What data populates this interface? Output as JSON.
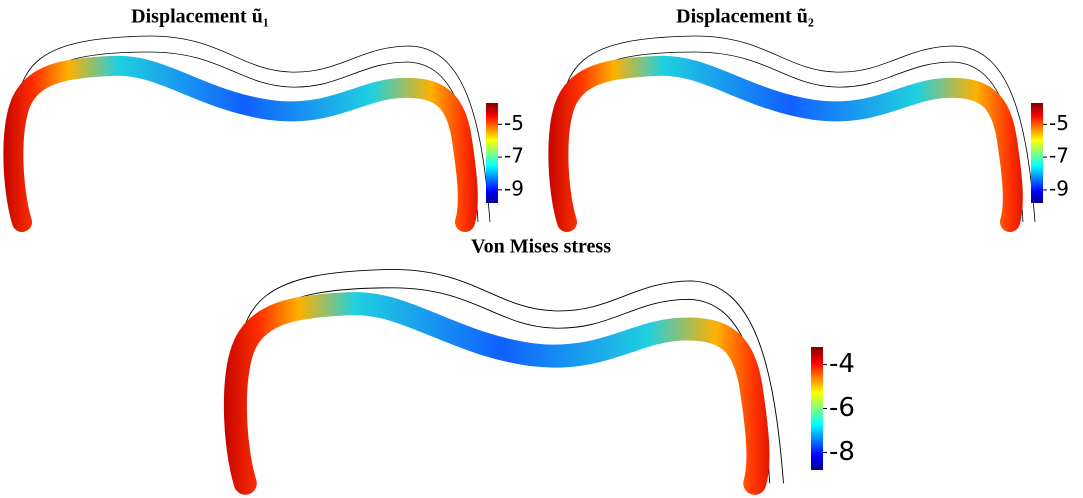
{
  "chart_data": [
    {
      "type": "heatmap",
      "title": "Displacement ũ₁",
      "zlim": [
        -9.8,
        -3.7
      ],
      "zticks": [
        -5,
        -7,
        -9
      ]
    },
    {
      "type": "heatmap",
      "title": "Displacement ũ₂",
      "zlim": [
        -9.8,
        -3.7
      ],
      "zticks": [
        -5,
        -7,
        -9
      ]
    },
    {
      "type": "heatmap",
      "title": "Von Mises stress",
      "zlim": [
        -8.8,
        -3.2
      ],
      "zticks": [
        -4,
        -6,
        -8
      ]
    }
  ]
}
